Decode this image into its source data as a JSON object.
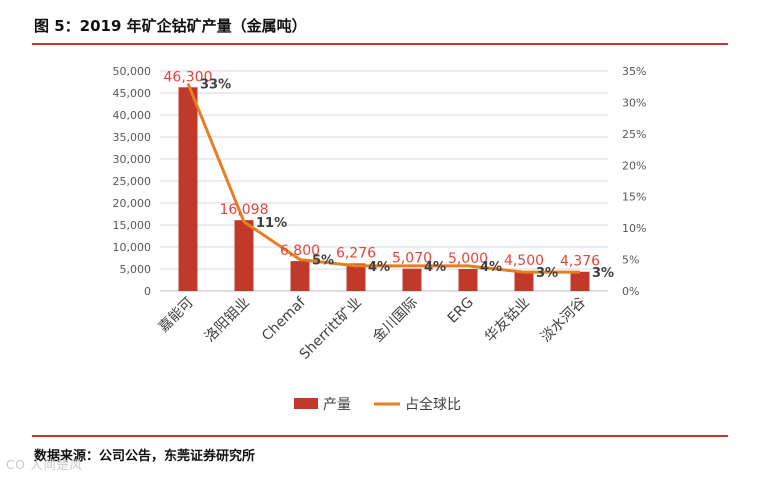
{
  "figure": {
    "title": "图 5：2019 年矿企钴矿产量（金属吨）",
    "source": "数据来源：公司公告，东莞证券研究所"
  },
  "watermark": "CO 人间楚风",
  "colors": {
    "bar": "#c0392b",
    "line": "#e67e22",
    "rule": "#c0392b",
    "label_value": "#e0463c",
    "label_share": "#404040",
    "axis_text": "#595959",
    "grid": "#d9d9d9"
  },
  "chart_data": {
    "type": "bar",
    "title": "",
    "categories": [
      "嘉能可",
      "洛阳钼业",
      "Chemaf",
      "Sherritt矿业",
      "金川国际",
      "ERG",
      "华友钴业",
      "淡水河谷"
    ],
    "series": [
      {
        "name": "产量",
        "type": "bar",
        "axis": "left",
        "values": [
          46300,
          16098,
          6800,
          6276,
          5070,
          5000,
          4500,
          4376
        ],
        "labels": [
          "46,300",
          "16,098",
          "6,800",
          "6,276",
          "5,070",
          "5,000",
          "4,500",
          "4,376"
        ]
      },
      {
        "name": "占全球比",
        "type": "line",
        "axis": "right",
        "values": [
          33,
          11,
          5,
          4,
          4,
          4,
          3,
          3
        ],
        "labels": [
          "33%",
          "11%",
          "5%",
          "4%",
          "4%",
          "4%",
          "3%",
          "3%"
        ]
      }
    ],
    "ylim": [
      0,
      50000
    ],
    "y_ticks": [
      0,
      5000,
      10000,
      15000,
      20000,
      25000,
      30000,
      35000,
      40000,
      45000,
      50000
    ],
    "y_tick_labels": [
      "0",
      "5,000",
      "10,000",
      "15,000",
      "20,000",
      "25,000",
      "30,000",
      "35,000",
      "40,000",
      "45,000",
      "50,000"
    ],
    "y2lim": [
      0,
      35
    ],
    "y2_ticks": [
      0,
      5,
      10,
      15,
      20,
      25,
      30,
      35
    ],
    "y2_tick_labels": [
      "0%",
      "5%",
      "10%",
      "15%",
      "20%",
      "25%",
      "30%",
      "35%"
    ],
    "grid": true,
    "legend": {
      "position": "bottom"
    }
  }
}
